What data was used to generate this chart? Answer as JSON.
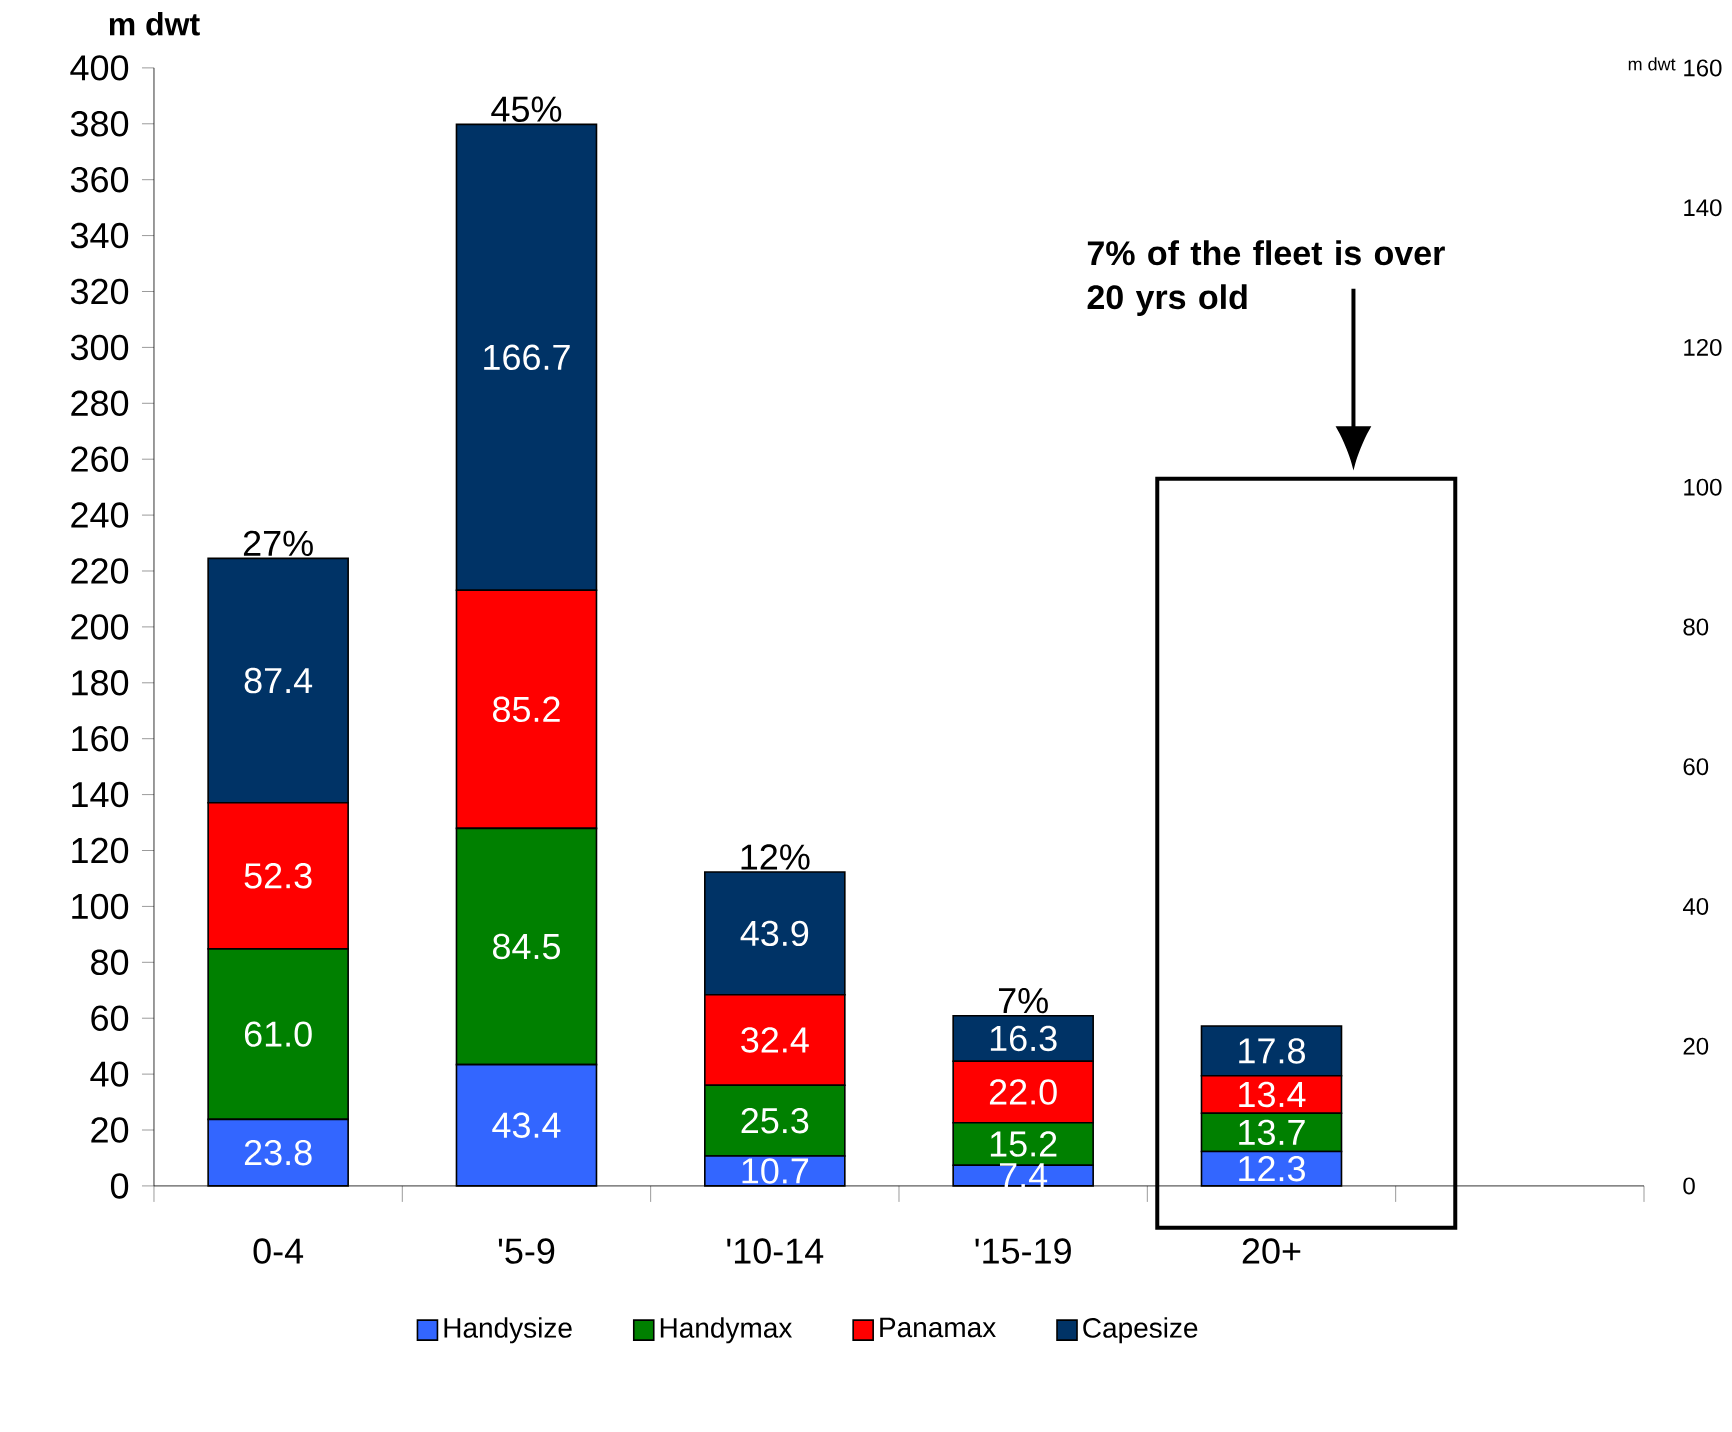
{
  "chart_data": {
    "type": "bar",
    "stacked": true,
    "ylabel": "m dwt",
    "y2label": "m dwt",
    "categories": [
      "0-4",
      "'5-9",
      "'10-14",
      "'15-19",
      "20+",
      null
    ],
    "series": [
      {
        "name": "Handysize",
        "color": "#3366ff",
        "values": [
          23.8,
          43.4,
          10.7,
          7.4,
          12.3,
          null
        ],
        "value_labels": [
          "23.8",
          "43.4",
          "10.7",
          "7.4",
          "12.3",
          null
        ]
      },
      {
        "name": "Handymax",
        "color": "#008000",
        "values": [
          61,
          84.5,
          25.3,
          15.2,
          13.7,
          null
        ],
        "value_labels": [
          "61.0",
          "84.5",
          "25.3",
          "15.2",
          "13.7",
          null
        ]
      },
      {
        "name": "Panamax",
        "color": "#ff0000",
        "values": [
          52.3,
          85.2,
          32.4,
          22,
          13.4,
          null
        ],
        "value_labels": [
          "52.3",
          "85.2",
          "32.4",
          "22.0",
          "13.4",
          null
        ]
      },
      {
        "name": "Capesize",
        "color": "#003366",
        "values": [
          87.4,
          166.7,
          43.9,
          16.3,
          17.8,
          null
        ],
        "value_labels": [
          "87.4",
          "166.7",
          "43.9",
          "16.3",
          "17.8",
          null
        ]
      }
    ],
    "ylim": [
      0,
      400
    ],
    "yticks": [
      0,
      20,
      40,
      60,
      80,
      100,
      120,
      140,
      160,
      180,
      200,
      220,
      240,
      260,
      280,
      300,
      320,
      340,
      360,
      380,
      400
    ],
    "y2lim": [
      0,
      160
    ],
    "y2ticks": [
      0,
      20,
      40,
      60,
      80,
      100,
      120,
      140,
      160
    ],
    "legend": "bottom",
    "grid": false,
    "annotations": [
      {
        "text": "27%",
        "x": "0-4",
        "y": 224.5
      },
      {
        "text": "45%",
        "x": "'5-9",
        "y": 379.8
      },
      {
        "text": "12%",
        "x": "'10-14",
        "y": 112.3
      },
      {
        "text": "7%",
        "x": "'15-19",
        "y": 60.9
      },
      "7% of the fleet is over 20 yrs old"
    ]
  }
}
